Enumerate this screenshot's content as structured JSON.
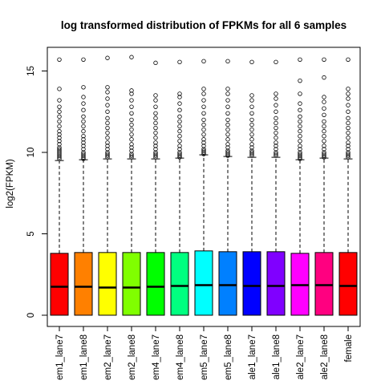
{
  "chart_data": {
    "type": "box",
    "title": "log transformed distribution of FPKMs for all 6 samples",
    "xlabel": "",
    "ylabel": "log2(FPKM)",
    "ylim": [
      -0.6,
      16.5
    ],
    "yticks": [
      0,
      5,
      10,
      15
    ],
    "grid": false,
    "legend": "none",
    "series": [
      {
        "label": "em1_lane7",
        "color": "#FF0000",
        "min": 0,
        "q1": 0,
        "median": 1.75,
        "q3": 3.8,
        "max": 9.5,
        "outliers": [
          9.6,
          9.7,
          9.8,
          9.9,
          10.0,
          10.1,
          10.2,
          10.3,
          10.5,
          10.7,
          10.9,
          11.1,
          11.3,
          11.6,
          11.9,
          12.2,
          12.5,
          12.8,
          13.2,
          13.9,
          15.7
        ]
      },
      {
        "label": "em1_lane8",
        "color": "#FF8000",
        "min": 0,
        "q1": 0,
        "median": 1.75,
        "q3": 3.85,
        "max": 9.55,
        "outliers": [
          9.6,
          9.7,
          9.8,
          9.9,
          10.0,
          10.2,
          10.4,
          10.6,
          10.8,
          11.0,
          11.3,
          11.6,
          11.9,
          12.2,
          12.6,
          13.0,
          13.4,
          14.0,
          15.7
        ]
      },
      {
        "label": "em2_lane7",
        "color": "#FFFF00",
        "min": 0,
        "q1": 0,
        "median": 1.7,
        "q3": 3.85,
        "max": 9.6,
        "outliers": [
          9.7,
          9.8,
          9.9,
          10.0,
          10.2,
          10.4,
          10.6,
          10.9,
          11.2,
          11.5,
          11.8,
          12.1,
          12.5,
          12.9,
          13.3,
          13.7,
          14.0,
          15.8
        ]
      },
      {
        "label": "em2_lane8",
        "color": "#80FF00",
        "min": 0,
        "q1": 0,
        "median": 1.7,
        "q3": 3.85,
        "max": 9.6,
        "outliers": [
          9.7,
          9.8,
          9.9,
          10.1,
          10.3,
          10.5,
          10.8,
          11.1,
          11.4,
          11.7,
          12.0,
          12.4,
          12.8,
          13.2,
          13.6,
          13.8,
          15.85
        ]
      },
      {
        "label": "em4_lane7",
        "color": "#00FF00",
        "min": 0,
        "q1": 0,
        "median": 1.75,
        "q3": 3.85,
        "max": 9.6,
        "outliers": [
          9.7,
          9.8,
          9.9,
          10.0,
          10.2,
          10.4,
          10.6,
          10.9,
          11.2,
          11.5,
          11.8,
          12.1,
          12.4,
          12.8,
          13.2,
          13.5,
          15.5
        ]
      },
      {
        "label": "em4_lane8",
        "color": "#00FF80",
        "min": 0,
        "q1": 0,
        "median": 1.8,
        "q3": 3.85,
        "max": 9.65,
        "outliers": [
          9.7,
          9.8,
          9.9,
          10.0,
          10.2,
          10.4,
          10.7,
          11.0,
          11.3,
          11.6,
          11.9,
          12.2,
          12.6,
          13.0,
          13.4,
          13.6,
          15.55
        ]
      },
      {
        "label": "em5_lane7",
        "color": "#00FFFF",
        "min": 0,
        "q1": 0,
        "median": 1.85,
        "q3": 3.95,
        "max": 9.85,
        "outliers": [
          9.9,
          10.0,
          10.1,
          10.2,
          10.4,
          10.6,
          10.8,
          11.1,
          11.4,
          11.7,
          12.0,
          12.4,
          12.8,
          13.2,
          13.6,
          13.9,
          15.6
        ]
      },
      {
        "label": "em5_lane8",
        "color": "#0080FF",
        "min": 0,
        "q1": 0,
        "median": 1.85,
        "q3": 3.9,
        "max": 9.75,
        "outliers": [
          9.8,
          9.9,
          10.0,
          10.1,
          10.3,
          10.5,
          10.8,
          11.1,
          11.4,
          11.7,
          12.0,
          12.4,
          12.8,
          13.2,
          13.6,
          13.9,
          15.6
        ]
      },
      {
        "label": "ale1_lane7",
        "color": "#0000FF",
        "min": 0,
        "q1": 0,
        "median": 1.8,
        "q3": 3.9,
        "max": 9.7,
        "outliers": [
          9.8,
          9.9,
          10.0,
          10.1,
          10.3,
          10.5,
          10.8,
          11.1,
          11.4,
          11.7,
          12.0,
          12.4,
          12.8,
          13.2,
          13.5,
          15.55
        ]
      },
      {
        "label": "ale1_lane8",
        "color": "#8000FF",
        "min": 0,
        "q1": 0,
        "median": 1.8,
        "q3": 3.9,
        "max": 9.7,
        "outliers": [
          9.8,
          9.9,
          10.0,
          10.2,
          10.4,
          10.6,
          10.9,
          11.2,
          11.5,
          11.8,
          12.1,
          12.5,
          12.9,
          13.3,
          13.6,
          15.55
        ]
      },
      {
        "label": "ale2_lane7",
        "color": "#FF00FF",
        "min": 0,
        "q1": 0,
        "median": 1.85,
        "q3": 3.8,
        "max": 9.55,
        "outliers": [
          9.6,
          9.7,
          9.8,
          9.9,
          10.0,
          10.2,
          10.4,
          10.7,
          11.0,
          11.3,
          11.6,
          11.9,
          12.2,
          12.6,
          13.0,
          13.6,
          14.4,
          15.7
        ]
      },
      {
        "label": "ale2_lane8",
        "color": "#FF0080",
        "min": 0,
        "q1": 0,
        "median": 1.85,
        "q3": 3.85,
        "max": 9.65,
        "outliers": [
          9.7,
          9.8,
          9.9,
          10.0,
          10.2,
          10.4,
          10.7,
          11.0,
          11.3,
          11.6,
          11.9,
          12.3,
          12.7,
          13.1,
          13.4,
          14.6,
          15.7
        ]
      },
      {
        "label": "female",
        "color": "#FF0000",
        "min": 0,
        "q1": 0,
        "median": 1.8,
        "q3": 3.85,
        "max": 9.6,
        "outliers": [
          9.7,
          9.8,
          9.9,
          10.0,
          10.2,
          10.4,
          10.6,
          10.9,
          11.2,
          11.5,
          11.8,
          12.1,
          12.5,
          12.9,
          13.3,
          13.6,
          13.9,
          15.7
        ]
      }
    ]
  }
}
